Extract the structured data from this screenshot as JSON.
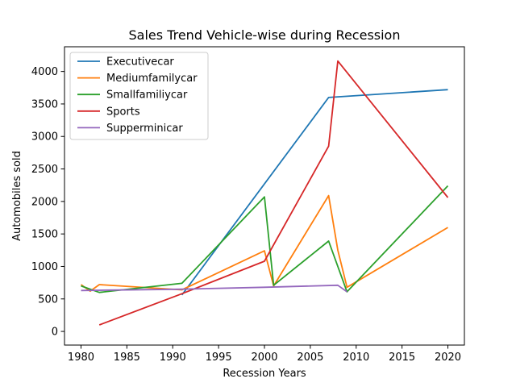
{
  "chart_data": {
    "type": "line",
    "title": "Sales Trend Vehicle-wise during Recession",
    "xlabel": "Recession Years",
    "ylabel": "Automobiles sold",
    "xlim": [
      1978.2,
      2021.8
    ],
    "ylim": [
      -210,
      4380
    ],
    "xticks": [
      1980,
      1985,
      1990,
      1995,
      2000,
      2005,
      2010,
      2015,
      2020
    ],
    "yticks": [
      0,
      500,
      1000,
      1500,
      2000,
      2500,
      3000,
      3500,
      4000
    ],
    "grid": false,
    "legend_position": "top-left",
    "series": [
      {
        "name": "Executivecar",
        "color": "#1f77b4",
        "x": [
          1991,
          2007,
          2020
        ],
        "y": [
          560,
          3600,
          3720
        ]
      },
      {
        "name": "Mediumfamilycar",
        "color": "#ff7f0e",
        "x": [
          1980,
          1981,
          1982,
          1991,
          2000,
          2001,
          2007,
          2008,
          2009,
          2020
        ],
        "y": [
          720,
          620,
          720,
          640,
          1240,
          700,
          2090,
          1250,
          680,
          1600
        ]
      },
      {
        "name": "Smallfamiliycar",
        "color": "#2ca02c",
        "x": [
          1980,
          1982,
          1991,
          2000,
          2001,
          2007,
          2009,
          2020
        ],
        "y": [
          700,
          600,
          740,
          2070,
          710,
          1390,
          610,
          2240
        ]
      },
      {
        "name": "Sports",
        "color": "#d62728",
        "x": [
          1982,
          1991,
          2000,
          2007,
          2008,
          2020
        ],
        "y": [
          100,
          580,
          1080,
          2850,
          4160,
          2060
        ]
      },
      {
        "name": "Supperminicar",
        "color": "#9467bd",
        "x": [
          1980,
          1991,
          2000,
          2008,
          2009
        ],
        "y": [
          630,
          650,
          680,
          710,
          610
        ]
      }
    ]
  }
}
